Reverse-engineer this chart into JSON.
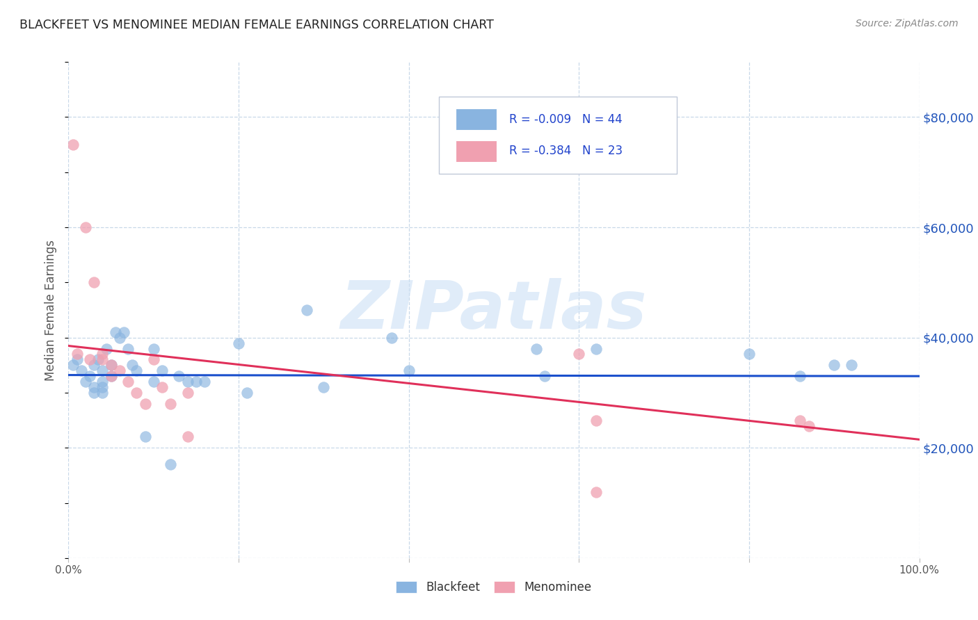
{
  "title": "BLACKFEET VS MENOMINEE MEDIAN FEMALE EARNINGS CORRELATION CHART",
  "source": "Source: ZipAtlas.com",
  "ylabel": "Median Female Earnings",
  "xlabel": "",
  "background_color": "#ffffff",
  "grid_color": "#c8d8e8",
  "blue_color": "#89b4e0",
  "pink_color": "#f0a0b0",
  "blue_line_color": "#1a4fcc",
  "pink_line_color": "#e0305a",
  "title_color": "#222222",
  "axis_label_color": "#555555",
  "right_tick_color": "#2255bb",
  "legend_r1": "R = -0.009",
  "legend_n1": "N = 44",
  "legend_r2": "R = -0.384",
  "legend_n2": "N = 23",
  "xmin": 0.0,
  "xmax": 1.0,
  "ymin": 0,
  "ymax": 90000,
  "yticks": [
    0,
    20000,
    40000,
    60000,
    80000
  ],
  "ytick_labels": [
    "",
    "$20,000",
    "$40,000",
    "$60,000",
    "$80,000"
  ],
  "blue_x": [
    0.005,
    0.01,
    0.015,
    0.02,
    0.025,
    0.03,
    0.03,
    0.03,
    0.035,
    0.04,
    0.04,
    0.04,
    0.04,
    0.045,
    0.05,
    0.05,
    0.055,
    0.06,
    0.065,
    0.07,
    0.075,
    0.08,
    0.09,
    0.1,
    0.1,
    0.11,
    0.12,
    0.13,
    0.14,
    0.15,
    0.16,
    0.2,
    0.21,
    0.28,
    0.3,
    0.38,
    0.4,
    0.55,
    0.56,
    0.62,
    0.8,
    0.86,
    0.9,
    0.92
  ],
  "blue_y": [
    35000,
    36000,
    34000,
    32000,
    33000,
    31000,
    30000,
    35000,
    36000,
    34000,
    32000,
    31000,
    30000,
    38000,
    35000,
    33000,
    41000,
    40000,
    41000,
    38000,
    35000,
    34000,
    22000,
    38000,
    32000,
    34000,
    17000,
    33000,
    32000,
    32000,
    32000,
    39000,
    30000,
    45000,
    31000,
    40000,
    34000,
    38000,
    33000,
    38000,
    37000,
    33000,
    35000,
    35000
  ],
  "pink_x": [
    0.005,
    0.01,
    0.02,
    0.025,
    0.03,
    0.04,
    0.04,
    0.05,
    0.05,
    0.06,
    0.07,
    0.08,
    0.09,
    0.1,
    0.11,
    0.12,
    0.14,
    0.14,
    0.6,
    0.62,
    0.62,
    0.86,
    0.87
  ],
  "pink_y": [
    75000,
    37000,
    60000,
    36000,
    50000,
    37000,
    36000,
    35000,
    33000,
    34000,
    32000,
    30000,
    28000,
    36000,
    31000,
    28000,
    22000,
    30000,
    37000,
    12000,
    25000,
    25000,
    24000
  ],
  "blue_line_y0": 33200,
  "blue_line_y1": 33000,
  "pink_line_y0": 38500,
  "pink_line_y1": 21500,
  "watermark_text": "ZIPatlas",
  "watermark_color": "#cce0f5",
  "watermark_alpha": 0.6,
  "legend_label_blue": "Blackfeet",
  "legend_label_pink": "Menominee",
  "marker_size": 130,
  "marker_alpha_blue": 0.65,
  "marker_alpha_pink": 0.75
}
